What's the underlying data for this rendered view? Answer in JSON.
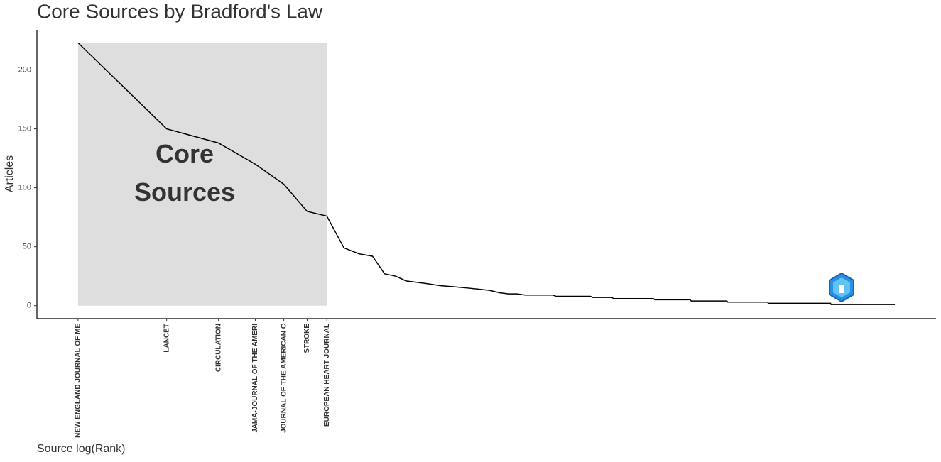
{
  "chart_data": {
    "type": "line",
    "title": "Core Sources by Bradford's Law",
    "x_label": "Source log(Rank)",
    "y_label": "Articles",
    "annotation_lines": [
      "Core",
      "Sources"
    ],
    "log_x": true,
    "color": "#000000",
    "core_color": "#dedede",
    "x": [
      1,
      2,
      3,
      4,
      5,
      6,
      7,
      8,
      9,
      10,
      11,
      12,
      13,
      15,
      17,
      19,
      21,
      23,
      25,
      27,
      29,
      31,
      33,
      41,
      42,
      55,
      56,
      65,
      66,
      90,
      91,
      120,
      121,
      160,
      161,
      220,
      221,
      360,
      361,
      595
    ],
    "values": [
      223,
      150,
      138,
      120,
      103,
      80,
      76,
      49,
      44,
      42,
      27,
      25,
      21,
      19,
      17,
      16,
      15,
      14,
      13,
      11,
      10,
      10,
      9,
      9,
      8,
      8,
      7,
      7,
      6,
      6,
      5,
      5,
      4,
      4,
      3,
      3,
      2,
      2,
      1,
      1
    ],
    "xlim": [
      0.725,
      821
    ],
    "ylim": [
      -11,
      234
    ],
    "xticks": [
      {
        "value": 1,
        "label": "NEW ENGLAND JOURNAL OF ME"
      },
      {
        "value": 2,
        "label": "LANCET"
      },
      {
        "value": 3,
        "label": "CIRCULATION"
      },
      {
        "value": 4,
        "label": "JAMA-JOURNAL OF THE AMERI"
      },
      {
        "value": 5,
        "label": "JOURNAL OF THE AMERICAN C"
      },
      {
        "value": 6,
        "label": "STROKE"
      },
      {
        "value": 7,
        "label": "EUROPEAN HEART JOURNAL"
      }
    ],
    "yticks": [
      0,
      50,
      100,
      150,
      200
    ],
    "grid": false
  }
}
